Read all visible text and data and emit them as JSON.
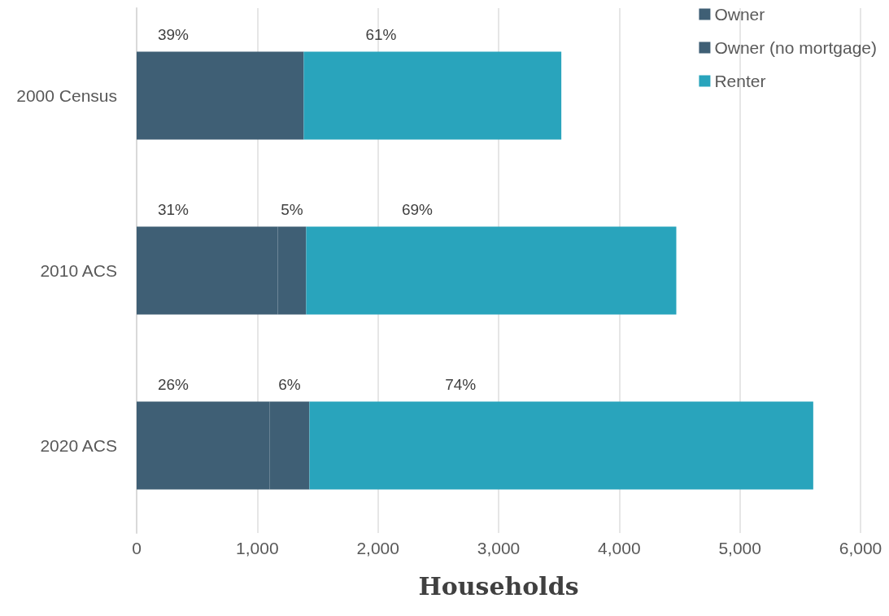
{
  "chart_data": {
    "type": "bar",
    "orientation": "horizontal",
    "stacked": true,
    "xlabel": "Households",
    "categories": [
      "2000 Census",
      "2010 ACS",
      "2020 ACS"
    ],
    "series": [
      {
        "name": "Owner",
        "color": "#3f5f75",
        "values": [
          1385,
          1169,
          1101
        ]
      },
      {
        "name": "Owner (no mortgage)",
        "color": "#3f5f75",
        "values": [
          null,
          236,
          331
        ]
      },
      {
        "name": "Renter",
        "color": "#29a4bc",
        "values": [
          2135,
          3068,
          4176
        ]
      }
    ],
    "annotations": [
      "39%",
      "61%",
      "31%",
      "5%",
      "69%",
      "26%",
      "6%",
      "74%"
    ],
    "xlim": [
      0,
      6000
    ],
    "xticks": [
      0,
      {
        "value": 1000,
        "label": "1,000"
      },
      {
        "value": 2000,
        "label": "2,000"
      },
      {
        "value": 3000,
        "label": "3,000"
      },
      {
        "value": 4000,
        "label": "4,000"
      },
      {
        "value": 5000,
        "label": "5,000"
      },
      {
        "value": 6000,
        "label": "6,000"
      }
    ],
    "grid": "x",
    "legend": "top right"
  }
}
